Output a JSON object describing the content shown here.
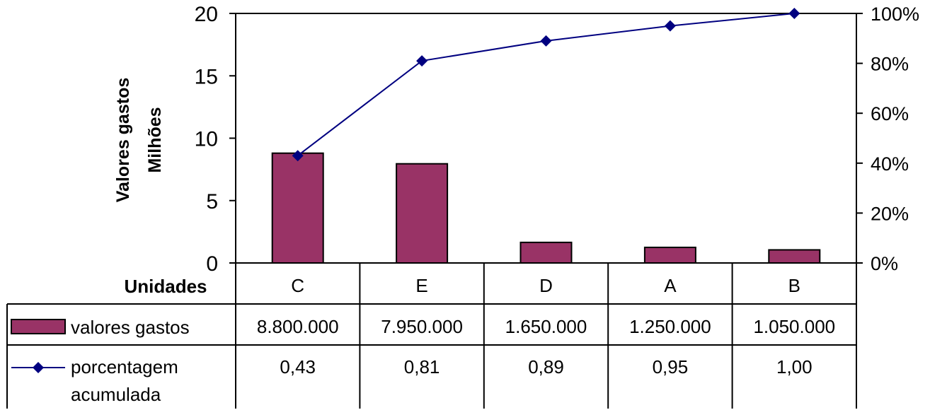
{
  "chart_data": {
    "type": "bar",
    "categories": [
      "C",
      "E",
      "D",
      "A",
      "B"
    ],
    "category_header": "Unidades",
    "ylabel_lines": [
      "Valores gastos",
      "Milhões"
    ],
    "y_ticks": [
      "0",
      "5",
      "10",
      "15",
      "20"
    ],
    "y2_ticks": [
      "0%",
      "20%",
      "40%",
      "60%",
      "80%",
      "100%"
    ],
    "ylim": [
      0,
      20
    ],
    "y2lim": [
      0,
      1
    ],
    "series": [
      {
        "name": "valores gastos",
        "type": "bar",
        "axis": "left",
        "values": [
          8.8,
          7.95,
          1.65,
          1.25,
          1.05
        ],
        "table_values": [
          "8.800.000",
          "7.950.000",
          "1.650.000",
          "1.250.000",
          "1.050.000"
        ],
        "color": "#993366"
      },
      {
        "name_lines": [
          "porcentagem",
          "acumulada"
        ],
        "type": "line",
        "axis": "right",
        "values": [
          0.43,
          0.81,
          0.89,
          0.95,
          1.0
        ],
        "table_values": [
          "0,43",
          "0,81",
          "0,89",
          "0,95",
          "1,00"
        ],
        "color": "#000080"
      }
    ],
    "grid": false,
    "legend": "data-table"
  }
}
